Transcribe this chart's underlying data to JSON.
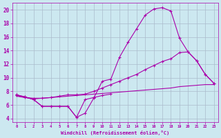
{
  "background_color": "#cce8f0",
  "grid_color": "#aabbcc",
  "line_color": "#aa00aa",
  "xlabel": "Windchill (Refroidissement éolien,°C)",
  "xlim": [
    -0.5,
    23.5
  ],
  "ylim": [
    3.5,
    21.0
  ],
  "yticks": [
    4,
    6,
    8,
    10,
    12,
    14,
    16,
    18,
    20
  ],
  "xticks": [
    0,
    1,
    2,
    3,
    4,
    5,
    6,
    7,
    8,
    9,
    10,
    11,
    12,
    13,
    14,
    15,
    16,
    17,
    18,
    19,
    20,
    21,
    22,
    23
  ],
  "curve1_x": [
    0,
    1,
    2,
    3,
    4,
    5,
    6,
    7,
    8,
    9,
    10,
    11,
    12,
    13,
    14,
    15,
    16,
    17,
    18,
    19,
    20,
    21,
    22,
    23
  ],
  "curve1_y": [
    7.5,
    7.2,
    6.8,
    5.8,
    5.8,
    5.8,
    5.8,
    4.2,
    4.8,
    7.0,
    9.5,
    9.8,
    13.0,
    15.2,
    17.2,
    19.2,
    20.1,
    20.3,
    19.8,
    15.8,
    13.8,
    12.5,
    10.5,
    9.2
  ],
  "curve2_x": [
    0,
    1,
    2,
    3,
    4,
    5,
    6,
    7,
    8,
    9,
    10,
    11,
    12,
    13,
    14,
    15,
    16,
    17,
    18,
    19,
    20,
    21,
    22,
    23
  ],
  "curve2_y": [
    7.4,
    7.1,
    6.9,
    7.0,
    7.1,
    7.3,
    7.5,
    7.5,
    7.6,
    8.0,
    8.5,
    9.0,
    9.5,
    10.0,
    10.5,
    11.2,
    11.8,
    12.4,
    12.8,
    13.7,
    13.8,
    12.5,
    10.5,
    9.2
  ],
  "curve3_x": [
    0,
    1,
    2,
    3,
    4,
    5,
    6,
    7,
    8,
    9,
    10,
    11,
    12,
    13,
    14,
    15,
    16,
    17,
    18,
    19,
    20,
    21,
    22,
    23
  ],
  "curve3_y": [
    7.3,
    7.1,
    7.0,
    7.0,
    7.1,
    7.2,
    7.3,
    7.4,
    7.5,
    7.6,
    7.7,
    7.8,
    7.9,
    8.0,
    8.1,
    8.2,
    8.3,
    8.4,
    8.5,
    8.7,
    8.8,
    8.9,
    9.0,
    9.0
  ],
  "curve4_x": [
    0,
    1,
    2,
    3,
    4,
    5,
    6,
    7,
    8,
    9,
    10,
    11
  ],
  "curve4_y": [
    7.5,
    7.2,
    6.8,
    5.8,
    5.8,
    5.8,
    5.8,
    4.2,
    6.8,
    7.1,
    7.4,
    7.6
  ]
}
